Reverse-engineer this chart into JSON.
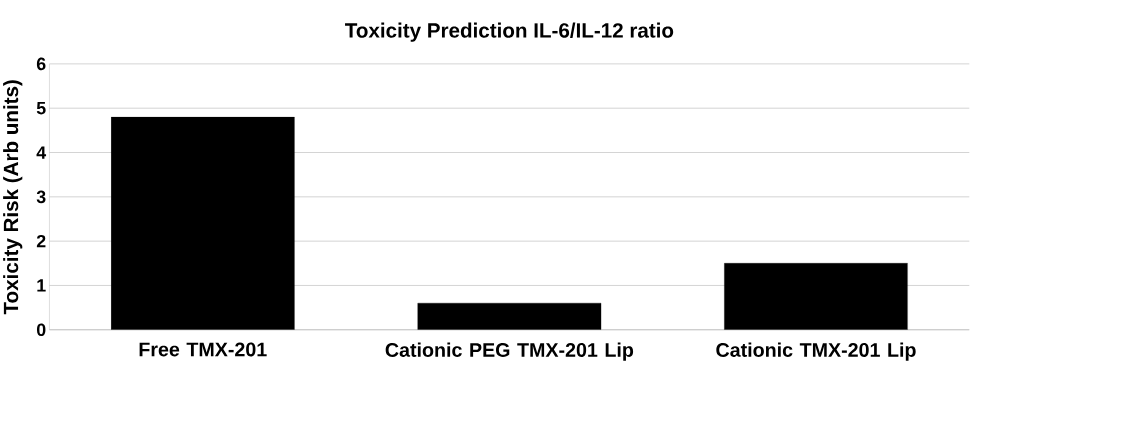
{
  "chart_data": {
    "type": "bar",
    "title": "Toxicity Prediction IL-6/IL-12 ratio",
    "ylabel": "Toxicity Risk (Arb units)",
    "categories": [
      "Free TMX-201",
      "Cationic PEG TMX-201 Lip",
      "Cationic TMX-201 Lip"
    ],
    "values": [
      4.8,
      0.6,
      1.5
    ],
    "color": "#000000",
    "ylim": [
      0,
      6
    ],
    "yticks": [
      0,
      1,
      2,
      3,
      4,
      5,
      6
    ],
    "grid": "y"
  }
}
